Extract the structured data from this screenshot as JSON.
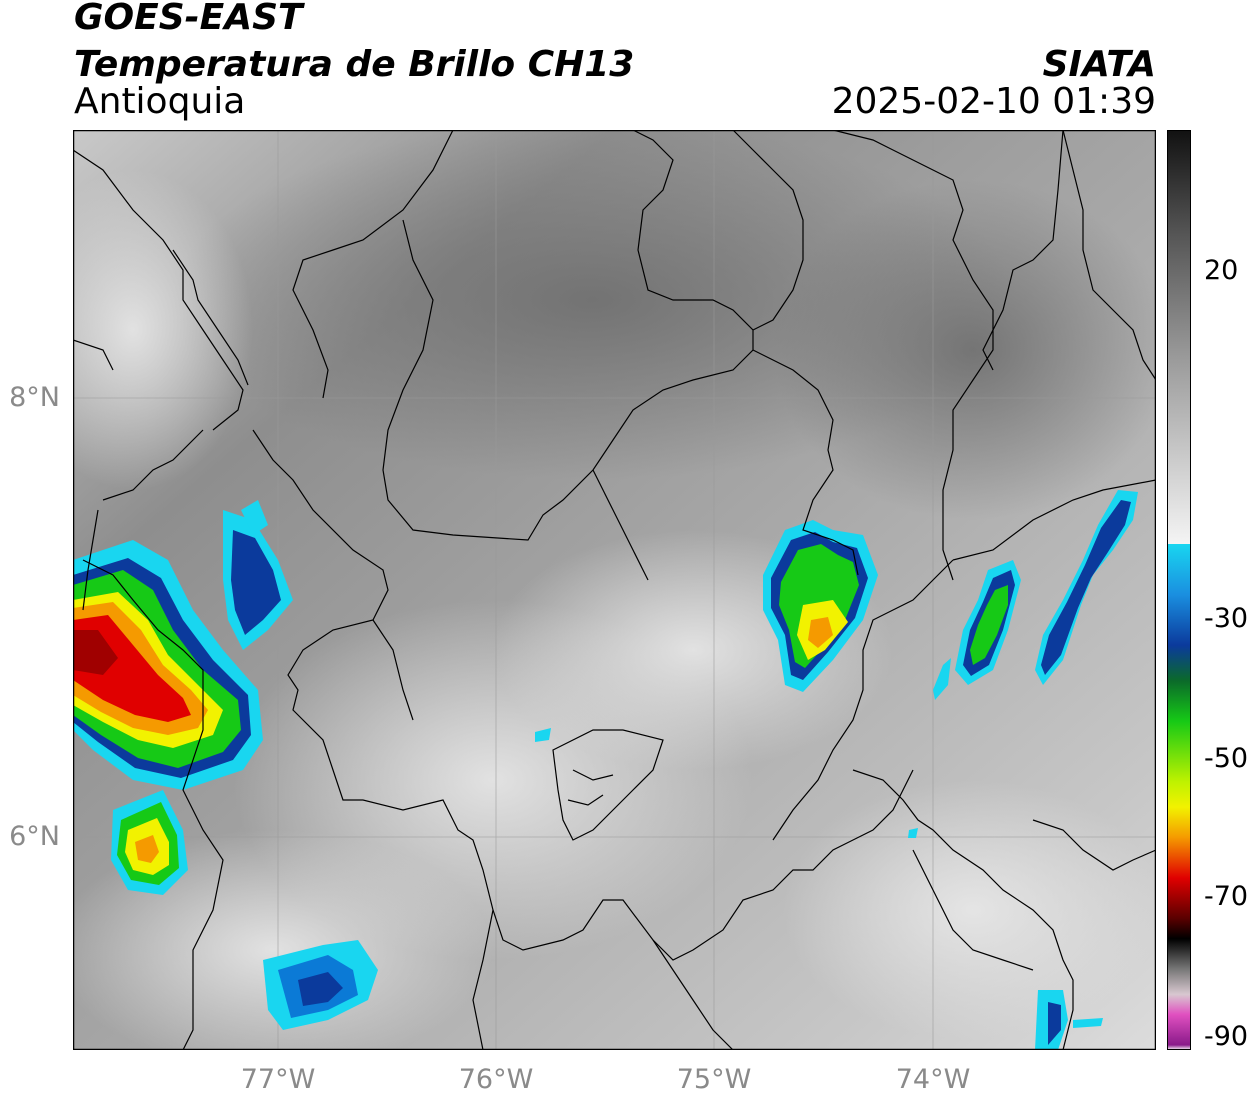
{
  "header": {
    "satellite": "GOES-EAST",
    "product": "Temperatura de Brillo CH13",
    "region": "Antioquia",
    "organization": "SIATA",
    "timestamp": "2025-02-10 01:39"
  },
  "axes": {
    "lat_labels": [
      "8°N",
      "6°N"
    ],
    "lon_labels": [
      "77°W",
      "76°W",
      "75°W",
      "74°W"
    ]
  },
  "colorbar": {
    "tick_labels": [
      "20",
      "-30",
      "-50",
      "-70",
      "-90"
    ],
    "colors": {
      "warm_dark": "#1a1a1a",
      "gray_mid": "#7a7a7a",
      "gray_light": "#f2f2f2",
      "cyan": "#19d6f0",
      "blue": "#0b3a9c",
      "green": "#16c916",
      "yellow": "#f2f200",
      "orange": "#f59a00",
      "red": "#e00000",
      "dark_red": "#5a0000",
      "black": "#000000",
      "pink": "#e050c0",
      "purple": "#8a1a8a"
    }
  }
}
